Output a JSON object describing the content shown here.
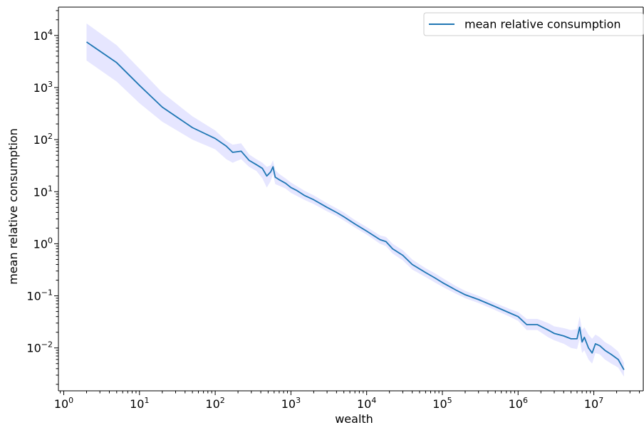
{
  "chart_data": {
    "type": "line",
    "title": "",
    "xlabel": "wealth",
    "ylabel": "mean relative consumption",
    "xscale": "log",
    "yscale": "log",
    "xlim": [
      0.85,
      45000000
    ],
    "ylim": [
      0.0015,
      35000
    ],
    "x_ticks": [
      {
        "base": "10",
        "exp": "0",
        "value": 1
      },
      {
        "base": "10",
        "exp": "1",
        "value": 10
      },
      {
        "base": "10",
        "exp": "2",
        "value": 100
      },
      {
        "base": "10",
        "exp": "3",
        "value": 1000
      },
      {
        "base": "10",
        "exp": "4",
        "value": 10000
      },
      {
        "base": "10",
        "exp": "5",
        "value": 100000
      },
      {
        "base": "10",
        "exp": "6",
        "value": 1000000
      },
      {
        "base": "10",
        "exp": "7",
        "value": 10000000
      }
    ],
    "y_ticks": [
      {
        "base": "10",
        "exp": "4",
        "value": 10000
      },
      {
        "base": "10",
        "exp": "3",
        "value": 1000
      },
      {
        "base": "10",
        "exp": "2",
        "value": 100
      },
      {
        "base": "10",
        "exp": "1",
        "value": 10
      },
      {
        "base": "10",
        "exp": "0",
        "value": 1
      },
      {
        "base": "10",
        "exp": "−1",
        "value": 0.1
      },
      {
        "base": "10",
        "exp": "−2",
        "value": 0.01
      }
    ],
    "grid": false,
    "legend": {
      "position": "top-right",
      "entries": [
        "mean relative consumption"
      ]
    },
    "colors": {
      "line": "#1f77b4",
      "band": "#e6e6ff"
    },
    "series": [
      {
        "name": "mean relative consumption",
        "points": [
          [
            2,
            7500
          ],
          [
            5,
            3000
          ],
          [
            10,
            1100
          ],
          [
            20,
            420
          ],
          [
            50,
            170
          ],
          [
            100,
            105
          ],
          [
            140,
            75
          ],
          [
            170,
            57
          ],
          [
            220,
            60
          ],
          [
            280,
            40
          ],
          [
            350,
            33
          ],
          [
            420,
            28
          ],
          [
            480,
            20
          ],
          [
            540,
            24
          ],
          [
            580,
            30
          ],
          [
            620,
            19
          ],
          [
            700,
            17
          ],
          [
            850,
            14.5
          ],
          [
            1000,
            12
          ],
          [
            1200,
            10.5
          ],
          [
            1500,
            8.5
          ],
          [
            2000,
            7.0
          ],
          [
            3000,
            5.0
          ],
          [
            4000,
            4.0
          ],
          [
            5000,
            3.3
          ],
          [
            7000,
            2.4
          ],
          [
            10000,
            1.75
          ],
          [
            15000,
            1.2
          ],
          [
            18000,
            1.1
          ],
          [
            22000,
            0.8
          ],
          [
            30000,
            0.6
          ],
          [
            40000,
            0.4
          ],
          [
            60000,
            0.28
          ],
          [
            80000,
            0.22
          ],
          [
            100000,
            0.18
          ],
          [
            150000,
            0.13
          ],
          [
            200000,
            0.105
          ],
          [
            300000,
            0.085
          ],
          [
            500000,
            0.062
          ],
          [
            800000,
            0.046
          ],
          [
            1000000,
            0.04
          ],
          [
            1300000,
            0.028
          ],
          [
            1800000,
            0.028
          ],
          [
            2500000,
            0.022
          ],
          [
            3000000,
            0.019
          ],
          [
            4000000,
            0.017
          ],
          [
            5000000,
            0.015
          ],
          [
            6000000,
            0.015
          ],
          [
            6500000,
            0.025
          ],
          [
            7000000,
            0.013
          ],
          [
            7500000,
            0.016
          ],
          [
            8500000,
            0.01
          ],
          [
            9500000,
            0.008
          ],
          [
            10500000,
            0.012
          ],
          [
            12000000,
            0.011
          ],
          [
            14000000,
            0.009
          ],
          [
            17000000,
            0.0075
          ],
          [
            21000000,
            0.006
          ],
          [
            25000000,
            0.0038
          ]
        ],
        "band": [
          [
            2,
            3300,
            17000
          ],
          [
            5,
            1300,
            6500
          ],
          [
            10,
            500,
            2300
          ],
          [
            20,
            220,
            800
          ],
          [
            50,
            100,
            280
          ],
          [
            100,
            65,
            150
          ],
          [
            140,
            42,
            95
          ],
          [
            170,
            36,
            80
          ],
          [
            220,
            42,
            85
          ],
          [
            280,
            30,
            52
          ],
          [
            350,
            25,
            42
          ],
          [
            420,
            18,
            36
          ],
          [
            480,
            12,
            30
          ],
          [
            540,
            16,
            32
          ],
          [
            580,
            22,
            40
          ],
          [
            620,
            14,
            26
          ],
          [
            700,
            13,
            22
          ],
          [
            850,
            11.5,
            18
          ],
          [
            1000,
            9.5,
            15
          ],
          [
            1500,
            7.0,
            10.5
          ],
          [
            2000,
            5.8,
            8.5
          ],
          [
            3000,
            4.2,
            6.0
          ],
          [
            4000,
            3.4,
            4.8
          ],
          [
            5000,
            2.8,
            4.0
          ],
          [
            7000,
            2.05,
            2.85
          ],
          [
            10000,
            1.5,
            2.1
          ],
          [
            15000,
            1.0,
            1.45
          ],
          [
            18000,
            0.9,
            1.35
          ],
          [
            22000,
            0.65,
            1.0
          ],
          [
            30000,
            0.48,
            0.75
          ],
          [
            40000,
            0.32,
            0.5
          ],
          [
            60000,
            0.23,
            0.34
          ],
          [
            80000,
            0.18,
            0.27
          ],
          [
            100000,
            0.15,
            0.22
          ],
          [
            150000,
            0.11,
            0.155
          ],
          [
            200000,
            0.09,
            0.125
          ],
          [
            300000,
            0.073,
            0.1
          ],
          [
            500000,
            0.053,
            0.073
          ],
          [
            800000,
            0.039,
            0.055
          ],
          [
            1000000,
            0.033,
            0.049
          ],
          [
            1300000,
            0.022,
            0.036
          ],
          [
            1800000,
            0.022,
            0.036
          ],
          [
            2500000,
            0.016,
            0.03
          ],
          [
            3000000,
            0.014,
            0.026
          ],
          [
            4000000,
            0.012,
            0.024
          ],
          [
            5000000,
            0.01,
            0.022
          ],
          [
            6000000,
            0.0095,
            0.023
          ],
          [
            6500000,
            0.015,
            0.04
          ],
          [
            7000000,
            0.008,
            0.022
          ],
          [
            7500000,
            0.009,
            0.025
          ],
          [
            8500000,
            0.006,
            0.018
          ],
          [
            9500000,
            0.005,
            0.015
          ],
          [
            10500000,
            0.008,
            0.018
          ],
          [
            12000000,
            0.0075,
            0.016
          ],
          [
            14000000,
            0.006,
            0.013
          ],
          [
            17000000,
            0.005,
            0.011
          ],
          [
            21000000,
            0.0042,
            0.0085
          ],
          [
            25000000,
            0.0028,
            0.0052
          ]
        ]
      }
    ]
  }
}
